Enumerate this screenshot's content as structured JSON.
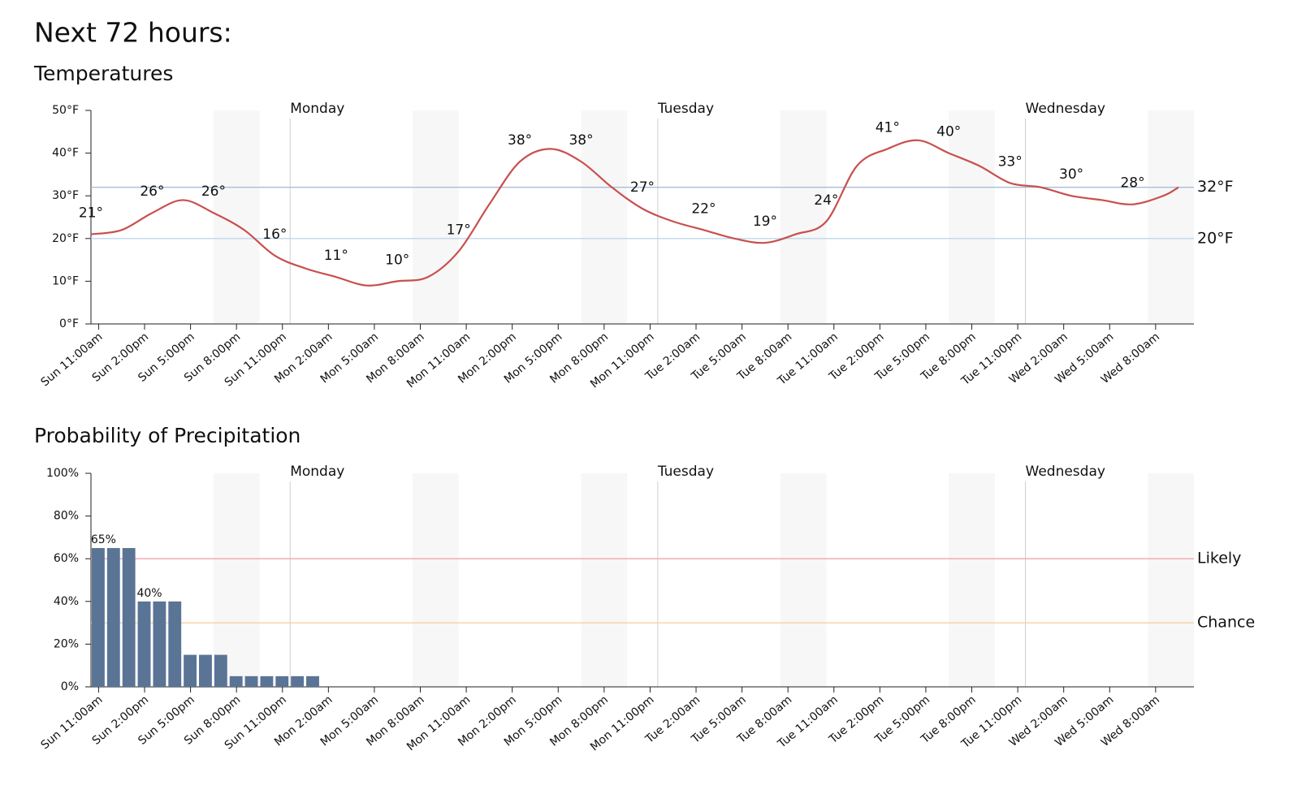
{
  "title": "Next 72 hours:",
  "chart_data": [
    {
      "type": "line",
      "title": "Temperatures",
      "color": "#c8504e",
      "x": [
        -0.5,
        1.5,
        3.5,
        5.5,
        7.5,
        9.5,
        11.5,
        13.5,
        15.5,
        17.5,
        19.5,
        21.5,
        23.5,
        25.5,
        27.5,
        29.5,
        31.5,
        33.5,
        35.5,
        37.5,
        39.5,
        41.5,
        43.5,
        45.5,
        47.5,
        49.5,
        51.5,
        53.5,
        55.5,
        57.5,
        59.5,
        61.5,
        63.5,
        65.5,
        67.5,
        69.5,
        70.5
      ],
      "values": [
        21,
        22,
        26,
        29,
        26,
        22,
        16,
        13,
        11,
        9,
        10,
        11,
        17,
        28,
        38,
        41,
        38,
        32,
        27,
        24,
        22,
        20,
        19,
        21,
        24,
        37,
        41,
        43,
        40,
        37,
        33,
        32,
        30,
        29,
        28,
        30,
        32
      ],
      "value_labels": [
        "21°",
        null,
        "26°",
        null,
        "26°",
        null,
        "16°",
        null,
        "11°",
        null,
        "10°",
        null,
        "17°",
        null,
        "38°",
        null,
        "38°",
        null,
        "27°",
        null,
        "22°",
        null,
        "19°",
        null,
        "24°",
        null,
        "41°",
        null,
        "40°",
        null,
        "33°",
        null,
        "30°",
        null,
        "28°",
        null,
        null
      ],
      "xlim": [
        -0.5,
        71.5
      ],
      "xticks": [
        {
          "value": 0,
          "label": "Sun 11:00am"
        },
        {
          "value": 3,
          "label": "Sun 2:00pm"
        },
        {
          "value": 6,
          "label": "Sun 5:00pm"
        },
        {
          "value": 9,
          "label": "Sun 8:00pm"
        },
        {
          "value": 12,
          "label": "Sun 11:00pm"
        },
        {
          "value": 15,
          "label": "Mon 2:00am"
        },
        {
          "value": 18,
          "label": "Mon 5:00am"
        },
        {
          "value": 21,
          "label": "Mon 8:00am"
        },
        {
          "value": 24,
          "label": "Mon 11:00am"
        },
        {
          "value": 27,
          "label": "Mon 2:00pm"
        },
        {
          "value": 30,
          "label": "Mon 5:00pm"
        },
        {
          "value": 33,
          "label": "Mon 8:00pm"
        },
        {
          "value": 36,
          "label": "Mon 11:00pm"
        },
        {
          "value": 39,
          "label": "Tue 2:00am"
        },
        {
          "value": 42,
          "label": "Tue 5:00am"
        },
        {
          "value": 45,
          "label": "Tue 8:00am"
        },
        {
          "value": 48,
          "label": "Tue 11:00am"
        },
        {
          "value": 51,
          "label": "Tue 2:00pm"
        },
        {
          "value": 54,
          "label": "Tue 5:00pm"
        },
        {
          "value": 57,
          "label": "Tue 8:00pm"
        },
        {
          "value": 60,
          "label": "Tue 11:00pm"
        },
        {
          "value": 63,
          "label": "Wed 2:00am"
        },
        {
          "value": 66,
          "label": "Wed 5:00am"
        },
        {
          "value": 69,
          "label": "Wed 8:00am"
        }
      ],
      "ylim": [
        0,
        50
      ],
      "yticks": [
        {
          "value": 0,
          "label": "0°F"
        },
        {
          "value": 10,
          "label": "10°F"
        },
        {
          "value": 20,
          "label": "20°F"
        },
        {
          "value": 30,
          "label": "30°F"
        },
        {
          "value": 40,
          "label": "40°F"
        },
        {
          "value": 50,
          "label": "50°F"
        }
      ],
      "reference_lines": [
        {
          "value": 32,
          "label": "32°F",
          "color": "#a9bdd6",
          "label_color": "#2c3e50"
        },
        {
          "value": 20,
          "label": "20°F",
          "color": "#bcd8ec",
          "label_color": "#2c3e50"
        }
      ],
      "day_markers": [
        {
          "x": 12.5,
          "label": "Monday"
        },
        {
          "x": 36.5,
          "label": "Tuesday"
        },
        {
          "x": 60.5,
          "label": "Wednesday"
        }
      ],
      "shaded_ranges": [
        [
          7.5,
          10.5
        ],
        [
          20.5,
          23.5
        ],
        [
          31.5,
          34.5
        ],
        [
          44.5,
          47.5
        ],
        [
          55.5,
          58.5
        ],
        [
          68.5,
          71.5
        ]
      ]
    },
    {
      "type": "bar",
      "title": "Probability of Precipitation",
      "color": "#5a7496",
      "x": [
        0,
        1,
        2,
        3,
        4,
        5,
        6,
        7,
        8,
        9,
        10,
        11,
        12,
        13,
        14
      ],
      "bar_width": 1,
      "values": [
        65,
        65,
        65,
        40,
        40,
        40,
        15,
        15,
        15,
        5,
        5,
        5,
        5,
        5,
        5
      ],
      "value_labels": [
        "65%",
        null,
        null,
        "40%",
        null,
        null,
        null,
        null,
        null,
        null,
        null,
        null,
        null,
        null,
        null
      ],
      "xlim": [
        -0.5,
        71.5
      ],
      "xticks": [
        {
          "value": 0,
          "label": "Sun 11:00am"
        },
        {
          "value": 3,
          "label": "Sun 2:00pm"
        },
        {
          "value": 6,
          "label": "Sun 5:00pm"
        },
        {
          "value": 9,
          "label": "Sun 8:00pm"
        },
        {
          "value": 12,
          "label": "Sun 11:00pm"
        },
        {
          "value": 15,
          "label": "Mon 2:00am"
        },
        {
          "value": 18,
          "label": "Mon 5:00am"
        },
        {
          "value": 21,
          "label": "Mon 8:00am"
        },
        {
          "value": 24,
          "label": "Mon 11:00am"
        },
        {
          "value": 27,
          "label": "Mon 2:00pm"
        },
        {
          "value": 30,
          "label": "Mon 5:00pm"
        },
        {
          "value": 33,
          "label": "Mon 8:00pm"
        },
        {
          "value": 36,
          "label": "Mon 11:00pm"
        },
        {
          "value": 39,
          "label": "Tue 2:00am"
        },
        {
          "value": 42,
          "label": "Tue 5:00am"
        },
        {
          "value": 45,
          "label": "Tue 8:00am"
        },
        {
          "value": 48,
          "label": "Tue 11:00am"
        },
        {
          "value": 51,
          "label": "Tue 2:00pm"
        },
        {
          "value": 54,
          "label": "Tue 5:00pm"
        },
        {
          "value": 57,
          "label": "Tue 8:00pm"
        },
        {
          "value": 60,
          "label": "Tue 11:00pm"
        },
        {
          "value": 63,
          "label": "Wed 2:00am"
        },
        {
          "value": 66,
          "label": "Wed 5:00am"
        },
        {
          "value": 69,
          "label": "Wed 8:00am"
        }
      ],
      "ylim": [
        0,
        100
      ],
      "yticks": [
        {
          "value": 0,
          "label": "0%"
        },
        {
          "value": 20,
          "label": "20%"
        },
        {
          "value": 40,
          "label": "40%"
        },
        {
          "value": 60,
          "label": "60%"
        },
        {
          "value": 80,
          "label": "80%"
        },
        {
          "value": 100,
          "label": "100%"
        }
      ],
      "reference_lines": [
        {
          "value": 60,
          "label": "Likely",
          "color": "#f5a5ad",
          "label_color": "#4a1212"
        },
        {
          "value": 30,
          "label": "Chance",
          "color": "#f6cc96",
          "label_color": "#4a3000"
        }
      ],
      "day_markers": [
        {
          "x": 12.5,
          "label": "Monday"
        },
        {
          "x": 36.5,
          "label": "Tuesday"
        },
        {
          "x": 60.5,
          "label": "Wednesday"
        }
      ],
      "shaded_ranges": [
        [
          7.5,
          10.5
        ],
        [
          20.5,
          23.5
        ],
        [
          31.5,
          34.5
        ],
        [
          44.5,
          47.5
        ],
        [
          55.5,
          58.5
        ],
        [
          68.5,
          71.5
        ]
      ]
    }
  ]
}
